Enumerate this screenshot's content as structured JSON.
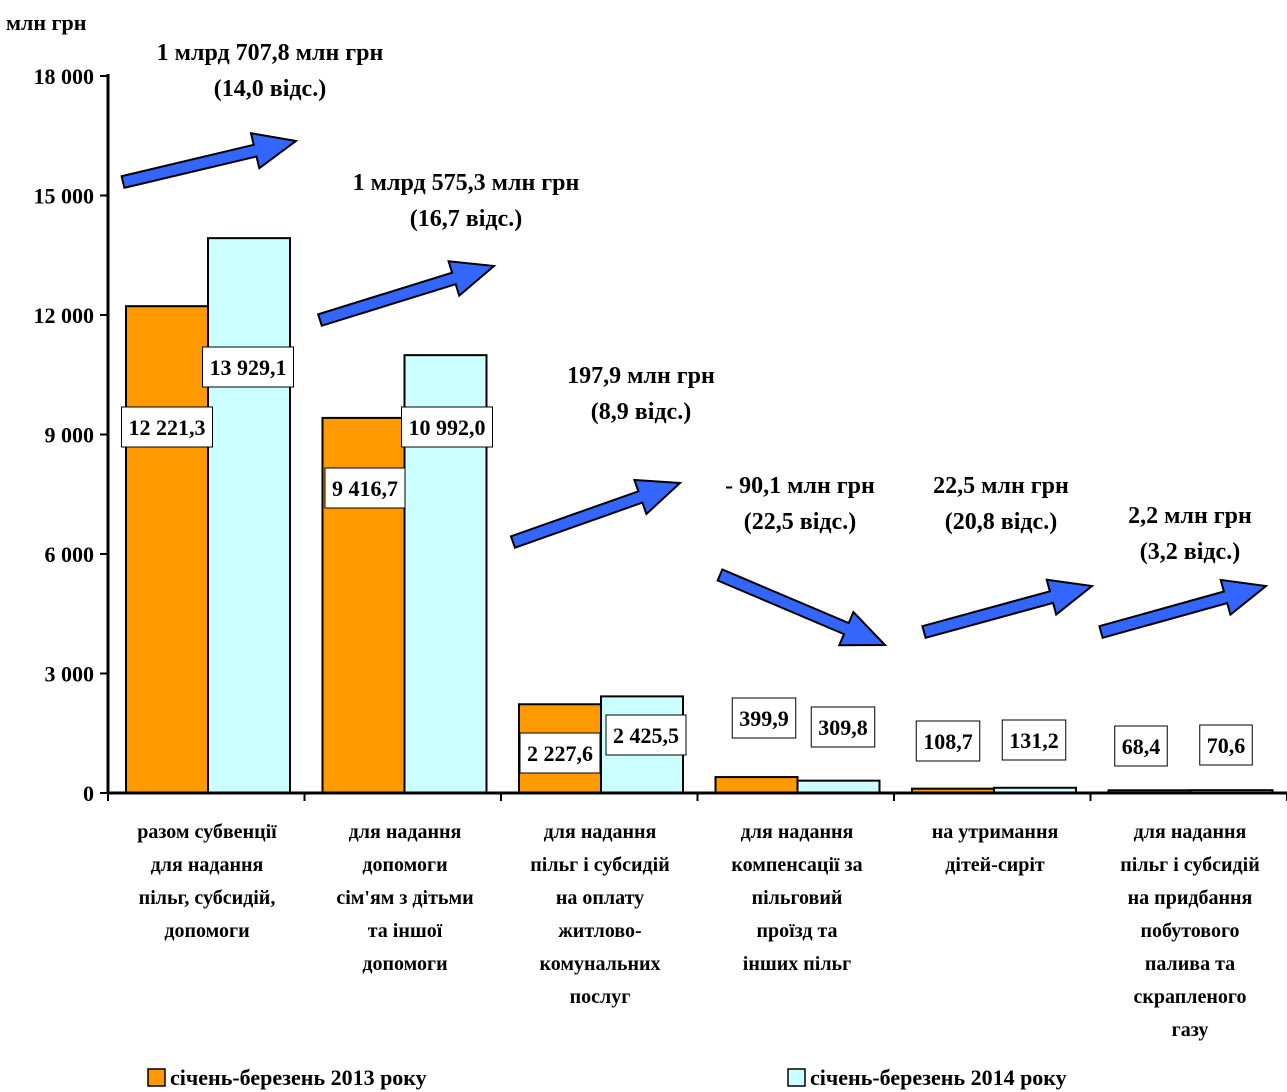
{
  "chart_data": {
    "type": "bar",
    "ylabel": "млн грн",
    "ylim": [
      0,
      18000
    ],
    "yticks": [
      0,
      3000,
      6000,
      9000,
      12000,
      15000,
      18000
    ],
    "ytick_labels": [
      "0",
      "3 000",
      "6 000",
      "9 000",
      "12 000",
      "15 000",
      "18 000"
    ],
    "grid": false,
    "legend_position": "bottom",
    "categories": [
      [
        "разом субвенції",
        "для надання",
        "пільг, субсидій,",
        "допомоги"
      ],
      [
        "для надання",
        "допомоги",
        "сім'ям з дітьми",
        "та іншої",
        "допомоги"
      ],
      [
        "для надання",
        "пільг і субсидій",
        "на оплату",
        "житлово-",
        "комунальних",
        "послуг"
      ],
      [
        "для надання",
        "компенсації за",
        "пільговий",
        "проїзд та",
        "інших пільг"
      ],
      [
        "на утримання",
        "дітей-сиріт"
      ],
      [
        "для надання",
        "пільг і субсидій",
        "на придбання",
        "побутового",
        "палива та",
        "скрапленого",
        "газу"
      ]
    ],
    "series": [
      {
        "name": "січень-березень 2013 року",
        "color": "#FF9900",
        "values": [
          12221.3,
          9416.7,
          2227.6,
          399.9,
          108.7,
          68.4
        ],
        "labels": [
          "12 221,3",
          "9 416,7",
          "2 227,6",
          "399,9",
          "108,7",
          "68,4"
        ]
      },
      {
        "name": "січень-березень 2014 року",
        "color": "#CCFFFF",
        "values": [
          13929.1,
          10992.0,
          2425.5,
          309.8,
          131.2,
          70.6
        ],
        "labels": [
          "13 929,1",
          "10 992,0",
          "2 425,5",
          "309,8",
          "131,2",
          "70,6"
        ]
      }
    ],
    "annotations": [
      {
        "lines": [
          "1 млрд 707,8 млн грн",
          "(14,0 відс.)"
        ],
        "direction": "up"
      },
      {
        "lines": [
          "1 млрд 575,3 млн грн",
          "(16,7 відс.)"
        ],
        "direction": "up"
      },
      {
        "lines": [
          "197,9 млн грн",
          "(8,9 відс.)"
        ],
        "direction": "up"
      },
      {
        "lines": [
          "- 90,1 млн грн",
          "(22,5 відс.)"
        ],
        "direction": "down"
      },
      {
        "lines": [
          "22,5 млн грн",
          "(20,8 відс.)"
        ],
        "direction": "up"
      },
      {
        "lines": [
          "2,2 млн грн",
          "(3,2 відс.)"
        ],
        "direction": "up"
      }
    ],
    "arrow_color": "#3366FF"
  }
}
